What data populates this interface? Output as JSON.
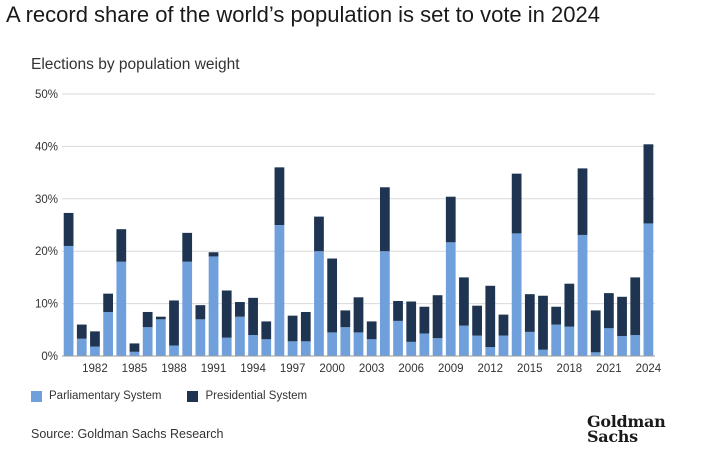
{
  "header": {
    "title": "A record share of the world’s population is set to vote in 2024",
    "subtitle": "Elections by population weight"
  },
  "legend": {
    "items": [
      {
        "label": "Parliamentary System",
        "color": "#6fa0dc"
      },
      {
        "label": "Presidential System",
        "color": "#1e3450"
      }
    ]
  },
  "footer": {
    "source": "Source: Goldman Sachs Research",
    "logo_line1": "Goldman",
    "logo_line2": "Sachs"
  },
  "chart_data": {
    "type": "bar",
    "stacked": true,
    "x": [
      1980,
      1981,
      1982,
      1983,
      1984,
      1985,
      1986,
      1987,
      1988,
      1989,
      1990,
      1991,
      1992,
      1993,
      1994,
      1995,
      1996,
      1997,
      1998,
      1999,
      2000,
      2001,
      2002,
      2003,
      2004,
      2005,
      2006,
      2007,
      2008,
      2009,
      2010,
      2011,
      2012,
      2013,
      2014,
      2015,
      2016,
      2017,
      2018,
      2019,
      2020,
      2021,
      2022,
      2023,
      2024
    ],
    "tick_labels": [
      {
        "x": 1982,
        "label": "1982"
      },
      {
        "x": 1985,
        "label": "1985"
      },
      {
        "x": 1988,
        "label": "1988"
      },
      {
        "x": 1991,
        "label": "1991"
      },
      {
        "x": 1994,
        "label": "1994"
      },
      {
        "x": 1997,
        "label": "1997"
      },
      {
        "x": 2000,
        "label": "2000"
      },
      {
        "x": 2003,
        "label": "2003"
      },
      {
        "x": 2006,
        "label": "2006"
      },
      {
        "x": 2009,
        "label": "2009"
      },
      {
        "x": 2012,
        "label": "2012"
      },
      {
        "x": 2015,
        "label": "2015"
      },
      {
        "x": 2018,
        "label": "2018"
      },
      {
        "x": 2021,
        "label": "2021"
      },
      {
        "x": 2024,
        "label": "2024"
      }
    ],
    "series": [
      {
        "name": "Parliamentary System",
        "color": "#6fa0dc",
        "values": [
          21.0,
          3.3,
          1.8,
          8.4,
          18.0,
          0.8,
          5.5,
          7.0,
          2.0,
          18.0,
          7.0,
          19.0,
          3.5,
          7.5,
          4.0,
          3.2,
          25.0,
          2.8,
          2.8,
          20.0,
          4.5,
          5.5,
          4.5,
          3.2,
          20.0,
          6.7,
          2.7,
          4.3,
          3.4,
          21.7,
          5.8,
          3.9,
          1.7,
          3.9,
          23.4,
          4.6,
          1.2,
          6.0,
          5.6,
          23.1,
          0.7,
          5.3,
          3.8,
          4.0,
          25.3
        ]
      },
      {
        "name": "Presidential System",
        "color": "#1e3450",
        "values": [
          6.3,
          2.7,
          2.9,
          3.5,
          6.2,
          1.6,
          2.9,
          0.5,
          8.6,
          5.5,
          2.7,
          0.8,
          9.0,
          2.8,
          7.1,
          3.4,
          11.0,
          4.9,
          5.6,
          6.6,
          14.1,
          3.2,
          6.7,
          3.4,
          12.2,
          3.8,
          7.7,
          5.1,
          8.2,
          8.7,
          9.2,
          5.7,
          11.7,
          4.0,
          11.4,
          7.2,
          10.3,
          3.4,
          8.2,
          12.7,
          8.0,
          6.7,
          7.5,
          11.0,
          15.1
        ]
      }
    ],
    "y_ticks": [
      "0%",
      "10%",
      "20%",
      "30%",
      "40%",
      "50%"
    ],
    "ylim": [
      0,
      50
    ],
    "grid": true
  }
}
